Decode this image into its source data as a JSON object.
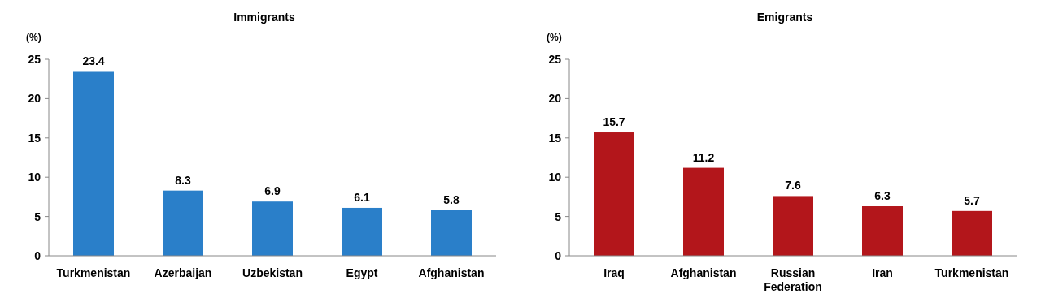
{
  "chart_data": [
    {
      "type": "bar",
      "title": "Immigrants",
      "ylabel": "(%)",
      "categories": [
        "Turkmenistan",
        "Azerbaijan",
        "Uzbekistan",
        "Egypt",
        "Afghanistan"
      ],
      "values": [
        23.4,
        8.3,
        6.9,
        6.1,
        5.8
      ],
      "color": "#2a7fc9",
      "ylim": [
        0,
        25
      ],
      "yticks": [
        0,
        5,
        10,
        15,
        20,
        25
      ],
      "data_labels": true,
      "grid": false
    },
    {
      "type": "bar",
      "title": "Emigrants",
      "ylabel": "(%)",
      "categories": [
        "Iraq",
        "Afghanistan",
        "Russian Federation",
        "Iran",
        "Turkmenistan"
      ],
      "values": [
        15.7,
        11.2,
        7.6,
        6.3,
        5.7
      ],
      "color": "#b3161b",
      "ylim": [
        0,
        25
      ],
      "yticks": [
        0,
        5,
        10,
        15,
        20,
        25
      ],
      "data_labels": true,
      "grid": false
    }
  ]
}
